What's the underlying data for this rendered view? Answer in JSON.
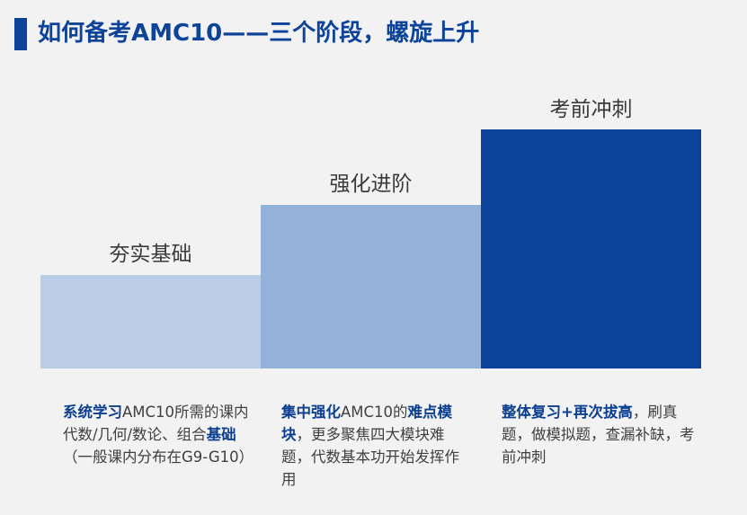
{
  "title": "如何备考AMC10——三个阶段，螺旋上升",
  "colors": {
    "background": "#f2f2f2",
    "title": "#0d4399",
    "title_marker": "#0d4399",
    "step1": "#bccde7",
    "step2": "#94b2d9",
    "step3": "#0a4399",
    "highlight": "#0d3f91"
  },
  "steps": [
    {
      "label": "夯实基础",
      "desc": [
        {
          "text": "系统学习",
          "bold": true
        },
        {
          "text": "AMC10所需的课内代数/几何/数论、组合",
          "bold": false
        },
        {
          "text": "基础",
          "bold": true
        },
        {
          "text": "（一般课内分布在G9-G10）",
          "bold": false
        }
      ]
    },
    {
      "label": "强化进阶",
      "desc": [
        {
          "text": "集中强化",
          "bold": true
        },
        {
          "text": "AMC10的",
          "bold": false
        },
        {
          "text": "难点模块",
          "bold": true
        },
        {
          "text": "，更多聚焦四大模块难题，代数基本功开始发挥作用",
          "bold": false
        }
      ]
    },
    {
      "label": "考前冲刺",
      "desc": [
        {
          "text": "整体复习+再次拔高",
          "bold": true
        },
        {
          "text": "，刷真题，做模拟题，查漏补缺，考前冲刺",
          "bold": false
        }
      ]
    }
  ]
}
